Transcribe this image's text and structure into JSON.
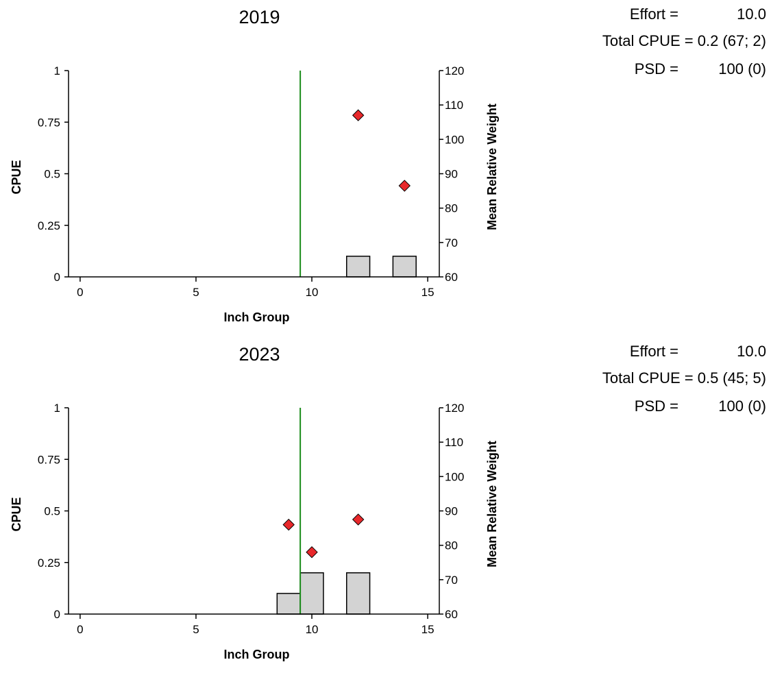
{
  "colors": {
    "cpue_bar_fill": "#d3d3d3",
    "cpue_bar_stroke": "#000000",
    "weight_marker": "#e8282b",
    "reference_line": "#1a8c1a",
    "axis": "#000000"
  },
  "chart_data": [
    {
      "type": "bar",
      "title": "2019",
      "xlabel": "Inch Group",
      "ylabel": "CPUE",
      "y2label": "Mean Relative Weight",
      "xlim": [
        -0.5,
        15.5
      ],
      "xticks": [
        0,
        5,
        10,
        15
      ],
      "ylim": [
        0,
        1
      ],
      "yticks": [
        0,
        0.25,
        0.5,
        0.75,
        1
      ],
      "ytick_labels": [
        "0",
        "0.25",
        "0.5",
        "0.75",
        "1"
      ],
      "y2lim": [
        60,
        120
      ],
      "y2ticks": [
        60,
        70,
        80,
        90,
        100,
        110,
        120
      ],
      "reference_line_x": 9.5,
      "grid": false,
      "series": [
        {
          "type": "bar",
          "x": [
            12,
            14
          ],
          "values": [
            0.1,
            0.1
          ]
        },
        {
          "type": "scatter",
          "axis": "y2",
          "x": [
            12,
            14
          ],
          "values": [
            107,
            86.5
          ]
        }
      ],
      "stats": [
        {
          "label": "Effort =",
          "value": "10.0"
        },
        {
          "label": "Total CPUE =",
          "value": "0.2 (67; 2)"
        },
        {
          "label": "PSD =",
          "value": "100 (0)"
        }
      ]
    },
    {
      "type": "bar",
      "title": "2023",
      "xlabel": "Inch Group",
      "ylabel": "CPUE",
      "y2label": "Mean Relative Weight",
      "xlim": [
        -0.5,
        15.5
      ],
      "xticks": [
        0,
        5,
        10,
        15
      ],
      "ylim": [
        0,
        1
      ],
      "yticks": [
        0,
        0.25,
        0.5,
        0.75,
        1
      ],
      "ytick_labels": [
        "0",
        "0.25",
        "0.5",
        "0.75",
        "1"
      ],
      "y2lim": [
        60,
        120
      ],
      "y2ticks": [
        60,
        70,
        80,
        90,
        100,
        110,
        120
      ],
      "reference_line_x": 9.5,
      "grid": false,
      "series": [
        {
          "type": "bar",
          "x": [
            9,
            10,
            12
          ],
          "values": [
            0.1,
            0.2,
            0.2
          ]
        },
        {
          "type": "scatter",
          "axis": "y2",
          "x": [
            9,
            10,
            12
          ],
          "values": [
            86,
            78,
            87.5
          ]
        }
      ],
      "stats": [
        {
          "label": "Effort =",
          "value": "10.0"
        },
        {
          "label": "Total CPUE =",
          "value": "0.5 (45; 5)"
        },
        {
          "label": "PSD =",
          "value": "100 (0)"
        }
      ]
    }
  ]
}
